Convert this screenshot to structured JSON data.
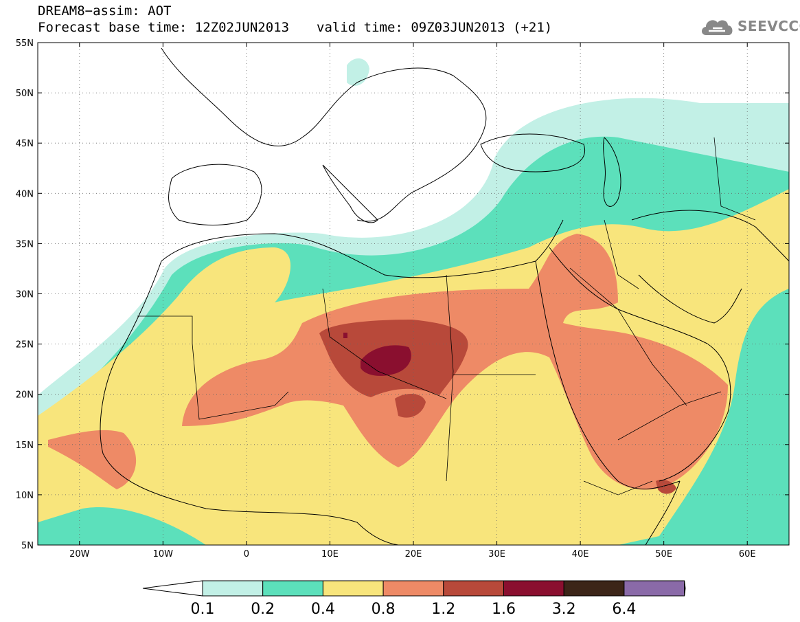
{
  "title": {
    "line1": "DREAM8−assim: AOT",
    "line2_base": "Forecast base time: 12Z02JUN2013",
    "line2_valid": "valid time: 09Z03JUN2013 (+21)"
  },
  "logo": {
    "text": "SEEVCCC",
    "icon": "cloud-icon"
  },
  "map": {
    "lon_range": [
      -25,
      65
    ],
    "lat_range": [
      5,
      55
    ],
    "lat_ticks": [
      {
        "value": 55,
        "label": "55N"
      },
      {
        "value": 50,
        "label": "50N"
      },
      {
        "value": 45,
        "label": "45N"
      },
      {
        "value": 40,
        "label": "40N"
      },
      {
        "value": 35,
        "label": "35N"
      },
      {
        "value": 30,
        "label": "30N"
      },
      {
        "value": 25,
        "label": "25N"
      },
      {
        "value": 20,
        "label": "20N"
      },
      {
        "value": 15,
        "label": "15N"
      },
      {
        "value": 10,
        "label": "10N"
      },
      {
        "value": 5,
        "label": "5N"
      }
    ],
    "lon_ticks": [
      {
        "value": -20,
        "label": "20W"
      },
      {
        "value": -10,
        "label": "10W"
      },
      {
        "value": 0,
        "label": "0"
      },
      {
        "value": 10,
        "label": "10E"
      },
      {
        "value": 20,
        "label": "20E"
      },
      {
        "value": 30,
        "label": "30E"
      },
      {
        "value": 40,
        "label": "40E"
      },
      {
        "value": 50,
        "label": "50E"
      },
      {
        "value": 60,
        "label": "60E"
      }
    ],
    "grid": "dotted"
  },
  "colorbar": {
    "labels": [
      "0.1",
      "0.2",
      "0.4",
      "0.8",
      "1.2",
      "1.6",
      "3.2",
      "6.4"
    ],
    "colors": [
      "#ffffff",
      "#c2f0e6",
      "#5ce0bb",
      "#f8e57c",
      "#ee8a66",
      "#b8493a",
      "#8a0f2f",
      "#3c2518",
      "#8a6aa8"
    ]
  }
}
